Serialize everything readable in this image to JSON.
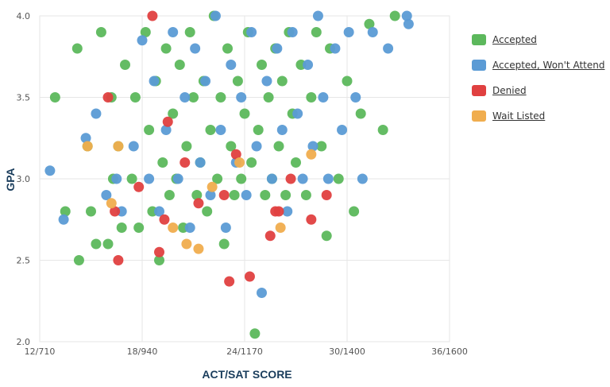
{
  "chart_data": {
    "type": "scatter",
    "xlabel": "ACT/SAT SCORE",
    "ylabel": "GPA",
    "x_ticks": [
      "12/710",
      "18/940",
      "24/1170",
      "30/1400",
      "36/1600"
    ],
    "y_ticks": [
      "2.0",
      "2.5",
      "3.0",
      "3.5",
      "4.0"
    ],
    "xlim": [
      12,
      36
    ],
    "ylim": [
      2.0,
      4.0
    ],
    "x_units": "ACT composite",
    "grid": true,
    "legend_position": "top-right",
    "series": [
      {
        "name": "Accepted",
        "color": "#5cb85c",
        "points": [
          [
            12.9,
            3.5
          ],
          [
            13.5,
            2.8
          ],
          [
            14.2,
            3.8
          ],
          [
            14.3,
            2.5
          ],
          [
            14.8,
            3.2
          ],
          [
            15.0,
            2.8
          ],
          [
            15.3,
            2.6
          ],
          [
            15.6,
            3.9
          ],
          [
            16.0,
            2.6
          ],
          [
            16.2,
            3.5
          ],
          [
            16.3,
            3.0
          ],
          [
            16.6,
            3.2
          ],
          [
            16.8,
            2.7
          ],
          [
            17.0,
            3.7
          ],
          [
            17.4,
            3.0
          ],
          [
            17.6,
            3.5
          ],
          [
            17.8,
            2.7
          ],
          [
            18.2,
            3.9
          ],
          [
            18.4,
            3.3
          ],
          [
            18.6,
            2.8
          ],
          [
            18.8,
            3.6
          ],
          [
            19.0,
            2.5
          ],
          [
            19.2,
            3.1
          ],
          [
            19.4,
            3.8
          ],
          [
            19.6,
            2.9
          ],
          [
            19.8,
            3.4
          ],
          [
            20.0,
            3.0
          ],
          [
            20.2,
            3.7
          ],
          [
            20.4,
            2.7
          ],
          [
            20.6,
            3.2
          ],
          [
            20.8,
            3.9
          ],
          [
            21.0,
            3.5
          ],
          [
            21.2,
            2.9
          ],
          [
            21.4,
            3.1
          ],
          [
            21.6,
            3.6
          ],
          [
            21.8,
            2.8
          ],
          [
            22.0,
            3.3
          ],
          [
            22.2,
            4.0
          ],
          [
            22.4,
            3.0
          ],
          [
            22.6,
            3.5
          ],
          [
            22.8,
            2.6
          ],
          [
            23.0,
            3.8
          ],
          [
            23.2,
            3.2
          ],
          [
            23.4,
            2.9
          ],
          [
            23.6,
            3.6
          ],
          [
            23.8,
            3.0
          ],
          [
            24.0,
            3.4
          ],
          [
            24.2,
            3.9
          ],
          [
            24.4,
            3.1
          ],
          [
            24.6,
            2.05
          ],
          [
            24.8,
            3.3
          ],
          [
            25.0,
            3.7
          ],
          [
            25.2,
            2.9
          ],
          [
            25.4,
            3.5
          ],
          [
            25.6,
            3.0
          ],
          [
            25.8,
            3.8
          ],
          [
            26.0,
            3.2
          ],
          [
            26.2,
            3.6
          ],
          [
            26.4,
            2.9
          ],
          [
            26.6,
            3.9
          ],
          [
            26.8,
            3.4
          ],
          [
            27.0,
            3.1
          ],
          [
            27.3,
            3.7
          ],
          [
            27.6,
            2.9
          ],
          [
            27.9,
            3.5
          ],
          [
            28.2,
            3.9
          ],
          [
            28.5,
            3.2
          ],
          [
            28.8,
            2.65
          ],
          [
            29.0,
            3.8
          ],
          [
            29.5,
            3.0
          ],
          [
            30.0,
            3.6
          ],
          [
            30.4,
            2.8
          ],
          [
            30.8,
            3.4
          ],
          [
            31.3,
            3.95
          ],
          [
            32.1,
            3.3
          ],
          [
            32.8,
            4.0
          ]
        ]
      },
      {
        "name": "Accepted, Won't Attend",
        "color": "#5b9bd5",
        "points": [
          [
            12.6,
            3.05
          ],
          [
            13.4,
            2.75
          ],
          [
            14.7,
            3.25
          ],
          [
            15.3,
            3.4
          ],
          [
            15.9,
            2.9
          ],
          [
            16.5,
            3.0
          ],
          [
            16.8,
            2.8
          ],
          [
            17.5,
            3.2
          ],
          [
            18.0,
            3.85
          ],
          [
            18.4,
            3.0
          ],
          [
            18.7,
            3.6
          ],
          [
            19.0,
            2.8
          ],
          [
            19.4,
            3.3
          ],
          [
            19.8,
            3.9
          ],
          [
            20.1,
            3.0
          ],
          [
            20.5,
            3.5
          ],
          [
            20.8,
            2.7
          ],
          [
            21.1,
            3.8
          ],
          [
            21.4,
            3.1
          ],
          [
            21.7,
            3.6
          ],
          [
            22.0,
            2.9
          ],
          [
            22.3,
            4.0
          ],
          [
            22.6,
            3.3
          ],
          [
            22.9,
            2.7
          ],
          [
            23.2,
            3.7
          ],
          [
            23.5,
            3.1
          ],
          [
            23.8,
            3.5
          ],
          [
            24.1,
            2.9
          ],
          [
            24.4,
            3.9
          ],
          [
            24.7,
            3.2
          ],
          [
            25.0,
            2.3
          ],
          [
            25.3,
            3.6
          ],
          [
            25.6,
            3.0
          ],
          [
            25.9,
            3.8
          ],
          [
            26.2,
            3.3
          ],
          [
            26.5,
            2.8
          ],
          [
            26.8,
            3.9
          ],
          [
            27.1,
            3.4
          ],
          [
            27.4,
            3.0
          ],
          [
            27.7,
            3.7
          ],
          [
            28.0,
            3.2
          ],
          [
            28.3,
            4.0
          ],
          [
            28.6,
            3.5
          ],
          [
            28.9,
            3.0
          ],
          [
            29.3,
            3.8
          ],
          [
            29.7,
            3.3
          ],
          [
            30.1,
            3.9
          ],
          [
            30.5,
            3.5
          ],
          [
            30.9,
            3.0
          ],
          [
            31.5,
            3.9
          ],
          [
            32.4,
            3.8
          ],
          [
            33.5,
            4.0
          ],
          [
            33.6,
            3.95
          ]
        ]
      },
      {
        "name": "Denied",
        "color": "#e04040",
        "points": [
          [
            16.0,
            3.5
          ],
          [
            16.4,
            2.8
          ],
          [
            16.6,
            2.5
          ],
          [
            17.8,
            2.95
          ],
          [
            18.6,
            4.0
          ],
          [
            19.0,
            2.55
          ],
          [
            19.3,
            2.75
          ],
          [
            19.5,
            3.35
          ],
          [
            20.5,
            3.1
          ],
          [
            21.3,
            2.85
          ],
          [
            22.8,
            2.9
          ],
          [
            23.1,
            2.37
          ],
          [
            23.5,
            3.15
          ],
          [
            24.3,
            2.4
          ],
          [
            25.5,
            2.65
          ],
          [
            25.8,
            2.8
          ],
          [
            26.0,
            2.8
          ],
          [
            26.7,
            3.0
          ],
          [
            27.9,
            2.75
          ],
          [
            28.8,
            2.9
          ]
        ]
      },
      {
        "name": "Wait Listed",
        "color": "#f0ad4e",
        "points": [
          [
            14.8,
            3.2
          ],
          [
            16.2,
            2.85
          ],
          [
            16.6,
            3.2
          ],
          [
            19.8,
            2.7
          ],
          [
            20.6,
            2.6
          ],
          [
            21.3,
            2.57
          ],
          [
            22.1,
            2.95
          ],
          [
            23.7,
            3.1
          ],
          [
            26.1,
            2.7
          ],
          [
            27.9,
            3.15
          ]
        ]
      }
    ]
  }
}
